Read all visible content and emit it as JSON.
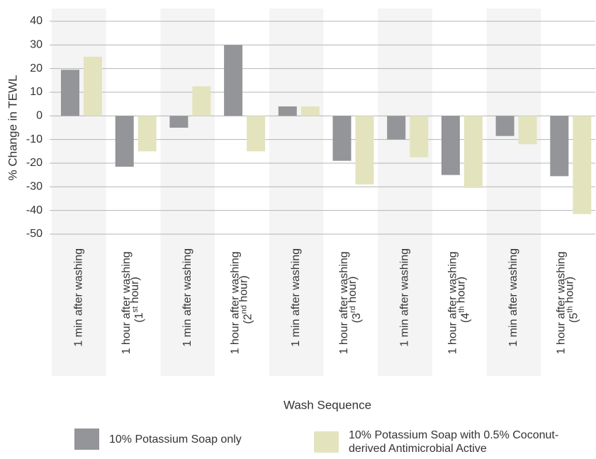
{
  "chart_data": {
    "type": "bar",
    "x_label": "Wash Sequence",
    "y_label": "% Change in TEWL",
    "categories": [
      "1 min after washing",
      "1 hour after washing (1st hour)",
      "1 min after washing",
      "1 hour after washing (2nd hour)",
      "1 min after washing",
      "1 hour after washing (3rd hour)",
      "1 min after washing",
      "1 hour after washing (4th hour)",
      "1 min after washing",
      "1 hour after washing (5th hour)"
    ],
    "series": [
      {
        "name": "10% Potassium Soap only",
        "color": "#939598",
        "values": [
          19.5,
          -21.5,
          -5,
          30,
          4,
          -19,
          -10,
          -25,
          -8.5,
          -25.5
        ]
      },
      {
        "name": "10% Potassium Soap with 0.5% Coconut-derived Antimicrobial Active",
        "color": "#e3e4be",
        "values": [
          25,
          -15,
          12.5,
          -15,
          4,
          -29,
          -17.5,
          -30.5,
          -12,
          -41.5
        ]
      }
    ],
    "ylim": [
      -50,
      40
    ],
    "yticks": [
      -50,
      -40,
      -30,
      -20,
      -10,
      0,
      10,
      20,
      30,
      40
    ],
    "grid": true
  }
}
